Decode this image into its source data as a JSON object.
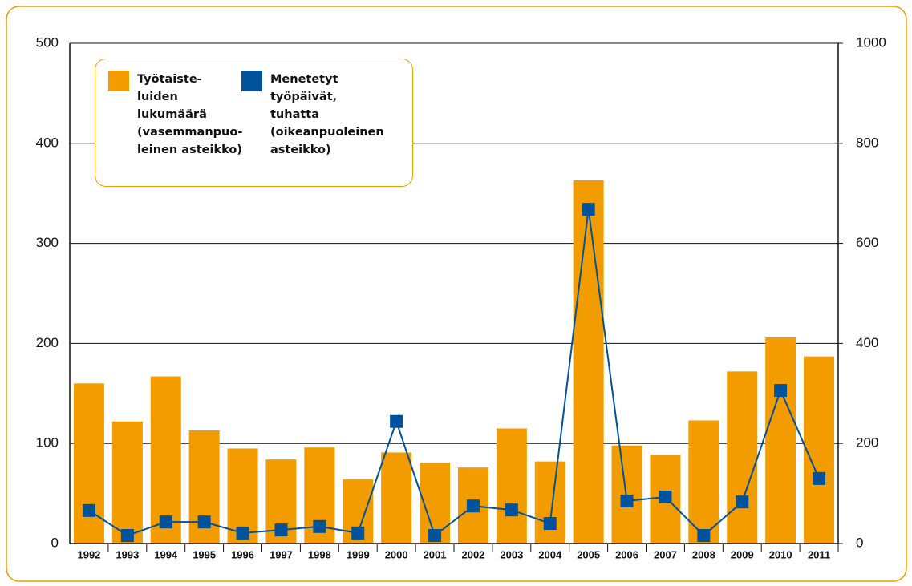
{
  "chart_data": {
    "type": "bar",
    "categories": [
      "1992",
      "1993",
      "1994",
      "1995",
      "1996",
      "1997",
      "1998",
      "1999",
      "2000",
      "2001",
      "2002",
      "2003",
      "2004",
      "2005",
      "2006",
      "2007",
      "2008",
      "2009",
      "2010",
      "2011"
    ],
    "series": [
      {
        "name": "Työtaiste-\nluiden\nlukumäärä\n(vasemmanpuo-\nleinen asteikko)",
        "color": "#f29c00",
        "type": "bar",
        "values": [
          160,
          122,
          167,
          113,
          95,
          84,
          96,
          64,
          91,
          81,
          76,
          115,
          82,
          363,
          98,
          89,
          123,
          172,
          206,
          187
        ]
      },
      {
        "name": "Menetetyt\ntyöpäivät,\ntuhatta\n(oikeanpuoleinen\nasteikko)",
        "color": "#00529b",
        "type": "line",
        "axis": "y2",
        "values": [
          66,
          16,
          43,
          43,
          21,
          27,
          34,
          21,
          244,
          16,
          75,
          67,
          40,
          668,
          85,
          93,
          16,
          83,
          306,
          130
        ]
      }
    ],
    "ylim": [
      0,
      500
    ],
    "yticks": [
      0,
      100,
      200,
      300,
      400,
      500
    ],
    "y2lim": [
      0,
      1000
    ],
    "y2ticks": [
      0,
      200,
      400,
      600,
      800,
      1000
    ],
    "grid": true
  }
}
